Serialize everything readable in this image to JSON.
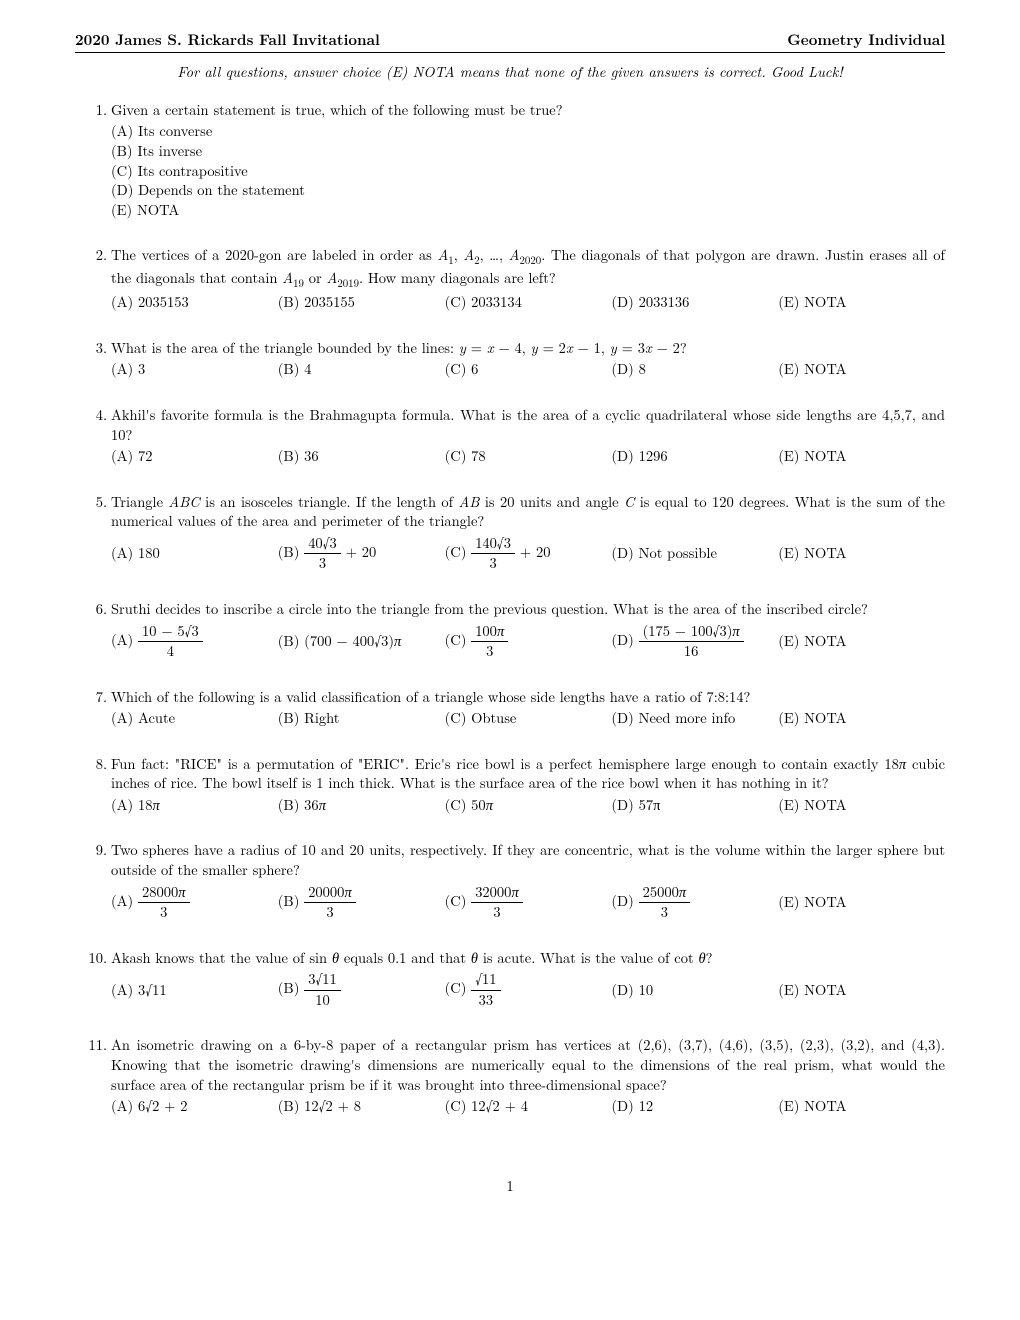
{
  "header": {
    "left": "2020 James S. Rickards Fall Invitational",
    "right": "Geometry Individual"
  },
  "instructions": "For all questions, answer choice (E) NOTA means that none of the given answers is correct. Good Luck!",
  "q1": {
    "text": "Given a certain statement is true, which of the following must be true?",
    "a": "(A) Its converse",
    "b": "(B) Its inverse",
    "c": "(C) Its contrapositive",
    "d": "(D) Depends on the statement",
    "e": "(E) NOTA"
  },
  "q2": {
    "a": "(A) 2035153",
    "b": "(B) 2035155",
    "c": "(C) 2033134",
    "d": "(D) 2033136",
    "e": "(E) NOTA"
  },
  "q3": {
    "a": "(A) 3",
    "b": "(B) 4",
    "c": "(C) 6",
    "d": "(D) 8",
    "e": "(E) NOTA"
  },
  "q4": {
    "text": "Akhil's favorite formula is the Brahmagupta formula. What is the area of a cyclic quadrilateral whose side lengths are 4,5,7, and 10?",
    "a": "(A) 72",
    "b": "(B) 36",
    "c": "(C) 78",
    "d": "(D) 1296",
    "e": "(E) NOTA"
  },
  "q5": {
    "a": "(A) 180",
    "d": "(D) Not possible",
    "e": "(E) NOTA"
  },
  "q6": {
    "text": "Sruthi decides to inscribe a circle into the triangle from the previous question. What is the area of the inscribed circle?",
    "e": "(E) NOTA"
  },
  "q7": {
    "text": "Which of the following is a valid classification of a triangle whose side lengths have a ratio of 7:8:14?",
    "a": "(A) Acute",
    "b": "(B) Right",
    "c": "(C) Obtuse",
    "d": "(D) Need more info",
    "e": "(E) NOTA"
  },
  "q8": {
    "d": "(D) 57π",
    "e": "(E) NOTA"
  },
  "q9": {
    "text": "Two spheres have a radius of 10 and 20 units, respectively. If they are concentric, what is the volume within the larger sphere but outside of the smaller sphere?",
    "e": "(E) NOTA"
  },
  "q10": {
    "d": "(D) 10",
    "e": "(E) NOTA"
  },
  "q11": {
    "text": "An isometric drawing on a 6-by-8 paper of a rectangular prism has vertices at (2,6), (3,7), (4,6), (3,5), (2,3), (3,2), and (4,3). Knowing that the isometric drawing's dimensions are numerically equal to the dimensions of the real prism, what would the surface area of the rectangular prism be if it was brought into three-dimensional space?",
    "d": "(D) 12",
    "e": "(E) NOTA"
  },
  "pagenum": "1"
}
